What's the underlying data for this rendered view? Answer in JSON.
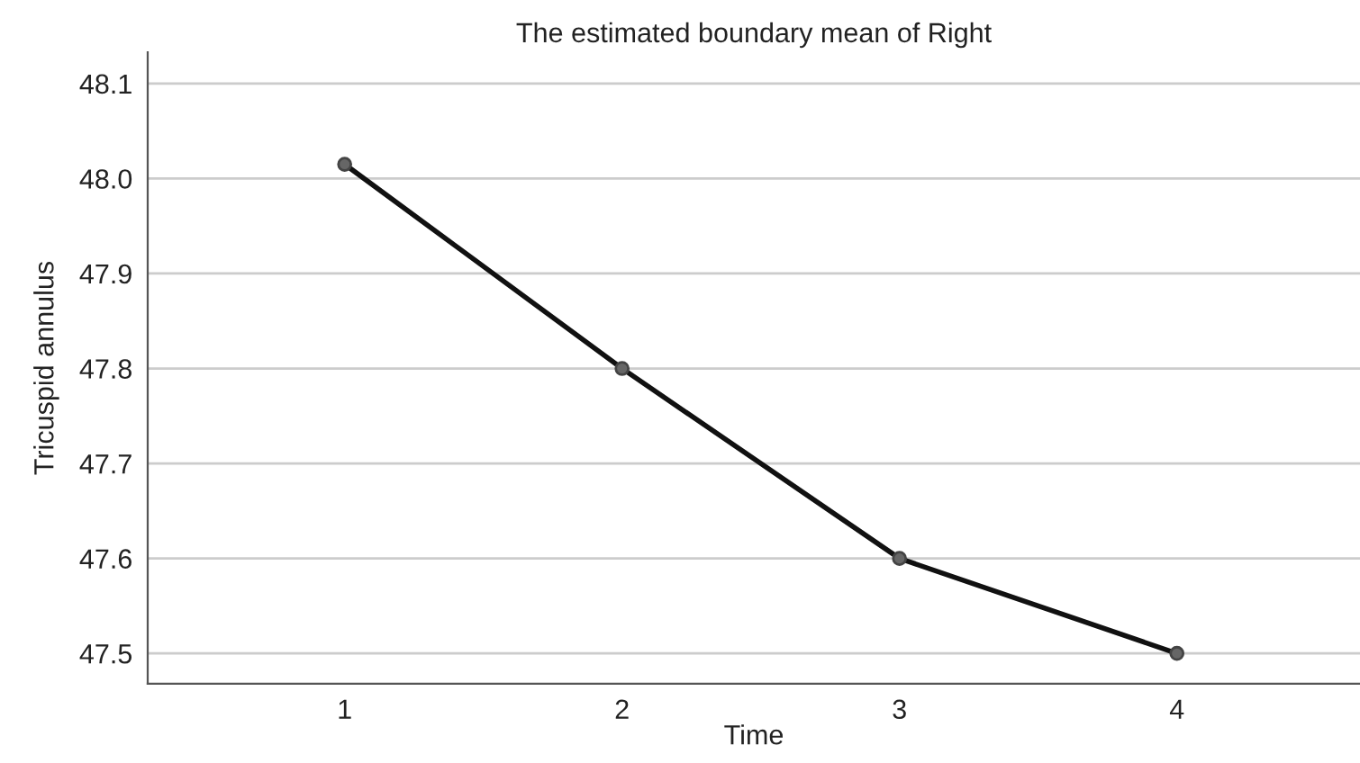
{
  "chart_data": {
    "type": "line",
    "title": "The estimated boundary mean of Right",
    "xlabel": "Time",
    "ylabel": "Tricuspid annulus",
    "categories": [
      "1",
      "2",
      "3",
      "4"
    ],
    "series": [
      {
        "color": "#111111",
        "values": [
          48.015,
          47.8,
          47.6,
          47.5
        ]
      }
    ],
    "ylim": [
      47.468,
      48.133
    ],
    "yticks": [
      {
        "value": 47.5,
        "label": "47.5"
      },
      {
        "value": 47.6,
        "label": "47.6"
      },
      {
        "value": 47.7,
        "label": "47.7"
      },
      {
        "value": 47.8,
        "label": "47.8"
      },
      {
        "value": 47.9,
        "label": "47.9"
      },
      {
        "value": 48.0,
        "label": "48.0"
      },
      {
        "value": 48.1,
        "label": "48.1"
      }
    ],
    "grid": "y",
    "marker": "circle",
    "line_style": "solid"
  }
}
